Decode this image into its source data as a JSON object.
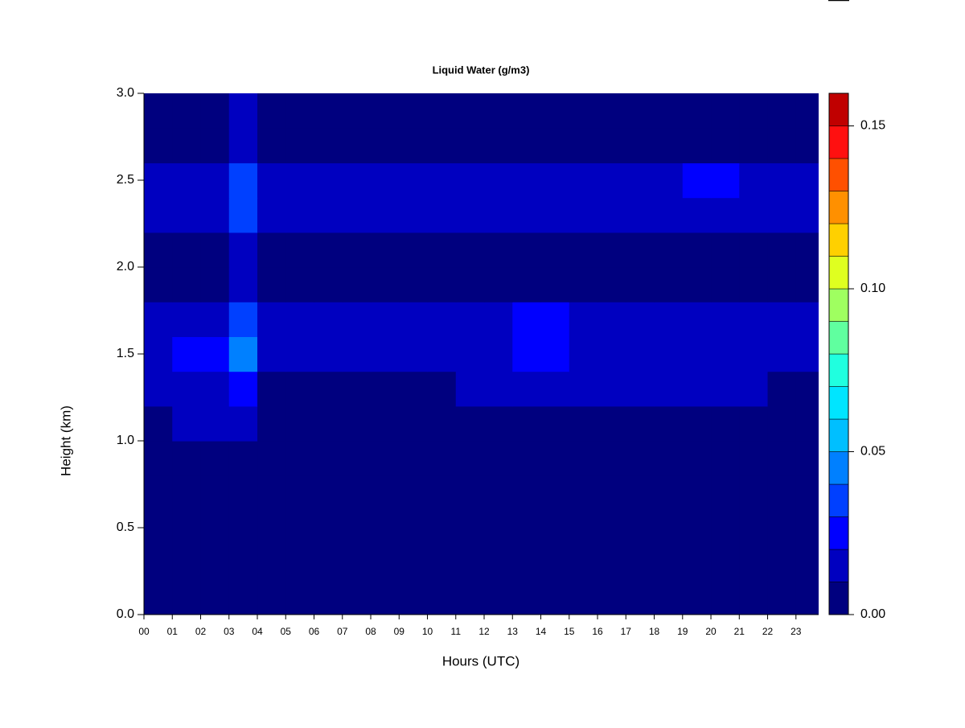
{
  "chart_data": {
    "type": "heatmap",
    "title": "Liquid Water (g/m3)",
    "x_label": "Hours (UTC)",
    "y_label": "Height (km)",
    "x": [
      0,
      1,
      2,
      3,
      4,
      5,
      6,
      7,
      8,
      9,
      10,
      11,
      12,
      13,
      14,
      15,
      16,
      17,
      18,
      19,
      20,
      21,
      22,
      23
    ],
    "y": [
      0,
      0.2,
      0.4,
      0.6,
      0.8,
      1.0,
      1.2,
      1.4,
      1.6,
      1.8,
      2.0,
      2.2,
      2.4,
      2.6,
      2.8
    ],
    "xlim": [
      0,
      23.8
    ],
    "ylim": [
      0,
      3
    ],
    "xticks": [
      {
        "value": 0,
        "label": "00"
      },
      {
        "value": 1,
        "label": "01"
      },
      {
        "value": 2,
        "label": "02"
      },
      {
        "value": 3,
        "label": "03"
      },
      {
        "value": 4,
        "label": "04"
      },
      {
        "value": 5,
        "label": "05"
      },
      {
        "value": 6,
        "label": "06"
      },
      {
        "value": 7,
        "label": "07"
      },
      {
        "value": 8,
        "label": "08"
      },
      {
        "value": 9,
        "label": "09"
      },
      {
        "value": 10,
        "label": "10"
      },
      {
        "value": 11,
        "label": "11"
      },
      {
        "value": 12,
        "label": "12"
      },
      {
        "value": 13,
        "label": "13"
      },
      {
        "value": 14,
        "label": "14"
      },
      {
        "value": 15,
        "label": "15"
      },
      {
        "value": 16,
        "label": "16"
      },
      {
        "value": 17,
        "label": "17"
      },
      {
        "value": 18,
        "label": "18"
      },
      {
        "value": 19,
        "label": "19"
      },
      {
        "value": 20,
        "label": "20"
      },
      {
        "value": 21,
        "label": "21"
      },
      {
        "value": 22,
        "label": "22"
      },
      {
        "value": 23,
        "label": "23"
      }
    ],
    "yticks": [
      {
        "value": 0,
        "label": "0.0"
      },
      {
        "value": 0.5,
        "label": "0.5"
      },
      {
        "value": 1,
        "label": "1.0"
      },
      {
        "value": 1.5,
        "label": "1.5"
      },
      {
        "value": 2,
        "label": "2.0"
      },
      {
        "value": 2.5,
        "label": "2.5"
      },
      {
        "value": 3,
        "label": "3.0"
      }
    ],
    "values": [
      [
        0.003,
        0.003,
        0.003,
        0.003,
        0.003,
        0.003,
        0.003,
        0.003,
        0.003,
        0.003,
        0.003,
        0.003,
        0.003,
        0.003,
        0.003,
        0.003,
        0.003,
        0.003,
        0.003,
        0.003,
        0.003,
        0.003,
        0.003,
        0.003
      ],
      [
        0.003,
        0.003,
        0.003,
        0.003,
        0.003,
        0.003,
        0.003,
        0.003,
        0.003,
        0.003,
        0.003,
        0.003,
        0.003,
        0.003,
        0.003,
        0.003,
        0.003,
        0.003,
        0.003,
        0.003,
        0.003,
        0.003,
        0.003,
        0.003
      ],
      [
        0.003,
        0.003,
        0.003,
        0.003,
        0.003,
        0.003,
        0.003,
        0.003,
        0.003,
        0.003,
        0.003,
        0.003,
        0.003,
        0.003,
        0.003,
        0.003,
        0.003,
        0.003,
        0.003,
        0.003,
        0.003,
        0.003,
        0.003,
        0.003
      ],
      [
        0.003,
        0.003,
        0.003,
        0.003,
        0.003,
        0.003,
        0.003,
        0.003,
        0.003,
        0.003,
        0.003,
        0.003,
        0.003,
        0.003,
        0.003,
        0.003,
        0.003,
        0.003,
        0.003,
        0.003,
        0.003,
        0.003,
        0.003,
        0.003
      ],
      [
        0.003,
        0.003,
        0.003,
        0.003,
        0.003,
        0.003,
        0.003,
        0.003,
        0.003,
        0.003,
        0.003,
        0.003,
        0.003,
        0.003,
        0.003,
        0.003,
        0.003,
        0.003,
        0.003,
        0.003,
        0.003,
        0.003,
        0.003,
        0.003
      ],
      [
        0.003,
        0.012,
        0.012,
        0.012,
        0.003,
        0.003,
        0.003,
        0.003,
        0.003,
        0.003,
        0.003,
        0.003,
        0.003,
        0.003,
        0.003,
        0.003,
        0.003,
        0.003,
        0.003,
        0.003,
        0.003,
        0.003,
        0.003,
        0.003
      ],
      [
        0.015,
        0.015,
        0.015,
        0.02,
        0.008,
        0.008,
        0.008,
        0.008,
        0.008,
        0.008,
        0.008,
        0.015,
        0.015,
        0.015,
        0.015,
        0.015,
        0.015,
        0.015,
        0.015,
        0.015,
        0.015,
        0.015,
        0.008,
        0.008
      ],
      [
        0.012,
        0.02,
        0.02,
        0.04,
        0.015,
        0.015,
        0.015,
        0.015,
        0.015,
        0.015,
        0.015,
        0.015,
        0.015,
        0.022,
        0.022,
        0.015,
        0.015,
        0.015,
        0.015,
        0.015,
        0.015,
        0.015,
        0.015,
        0.015
      ],
      [
        0.012,
        0.018,
        0.018,
        0.03,
        0.015,
        0.015,
        0.015,
        0.015,
        0.015,
        0.015,
        0.015,
        0.015,
        0.015,
        0.022,
        0.022,
        0.015,
        0.015,
        0.015,
        0.015,
        0.015,
        0.015,
        0.015,
        0.015,
        0.015
      ],
      [
        0.003,
        0.003,
        0.003,
        0.012,
        0.003,
        0.003,
        0.003,
        0.003,
        0.003,
        0.003,
        0.003,
        0.003,
        0.003,
        0.003,
        0.003,
        0.003,
        0.003,
        0.003,
        0.003,
        0.003,
        0.003,
        0.003,
        0.003,
        0.003
      ],
      [
        0.003,
        0.003,
        0.003,
        0.012,
        0.003,
        0.003,
        0.003,
        0.003,
        0.003,
        0.003,
        0.003,
        0.003,
        0.003,
        0.003,
        0.003,
        0.003,
        0.003,
        0.003,
        0.003,
        0.003,
        0.003,
        0.003,
        0.003,
        0.003
      ],
      [
        0.016,
        0.016,
        0.016,
        0.03,
        0.015,
        0.015,
        0.015,
        0.01,
        0.01,
        0.01,
        0.015,
        0.015,
        0.015,
        0.015,
        0.015,
        0.015,
        0.015,
        0.015,
        0.015,
        0.015,
        0.015,
        0.015,
        0.015,
        0.015
      ],
      [
        0.016,
        0.016,
        0.016,
        0.03,
        0.015,
        0.015,
        0.015,
        0.012,
        0.012,
        0.012,
        0.015,
        0.015,
        0.015,
        0.015,
        0.015,
        0.015,
        0.015,
        0.015,
        0.015,
        0.02,
        0.02,
        0.015,
        0.015,
        0.015
      ],
      [
        0.003,
        0.003,
        0.003,
        0.012,
        0.003,
        0.003,
        0.003,
        0.003,
        0.003,
        0.003,
        0.003,
        0.003,
        0.003,
        0.003,
        0.003,
        0.003,
        0.003,
        0.003,
        0.003,
        0.003,
        0.003,
        0.003,
        0.003,
        0.003
      ],
      [
        0.003,
        0.008,
        0.003,
        0.012,
        0.003,
        0.003,
        0.003,
        0.003,
        0.003,
        0.003,
        0.003,
        0.003,
        0.003,
        0.003,
        0.003,
        0.003,
        0.003,
        0.003,
        0.003,
        0.003,
        0.003,
        0.003,
        0.003,
        0.003
      ]
    ],
    "colorscale": {
      "levels": [
        0,
        0.01,
        0.02,
        0.03,
        0.04,
        0.05,
        0.06,
        0.07,
        0.08,
        0.09,
        0.1,
        0.11,
        0.12,
        0.13,
        0.14,
        0.15,
        0.16
      ],
      "colors": [
        "#00007F",
        "#0000C0",
        "#0000FF",
        "#0040FF",
        "#0080FF",
        "#00BFFF",
        "#00E5FF",
        "#20FFDF",
        "#60FF9F",
        "#9FFF60",
        "#DFFF20",
        "#FFD000",
        "#FF9000",
        "#FF5000",
        "#FF1010",
        "#C00000",
        "#800000"
      ],
      "ticks": [
        {
          "value": 0,
          "label": "0.00"
        },
        {
          "value": 0.05,
          "label": "0.05"
        },
        {
          "value": 0.1,
          "label": "0.10"
        },
        {
          "value": 0.15,
          "label": "0.15"
        }
      ]
    }
  }
}
